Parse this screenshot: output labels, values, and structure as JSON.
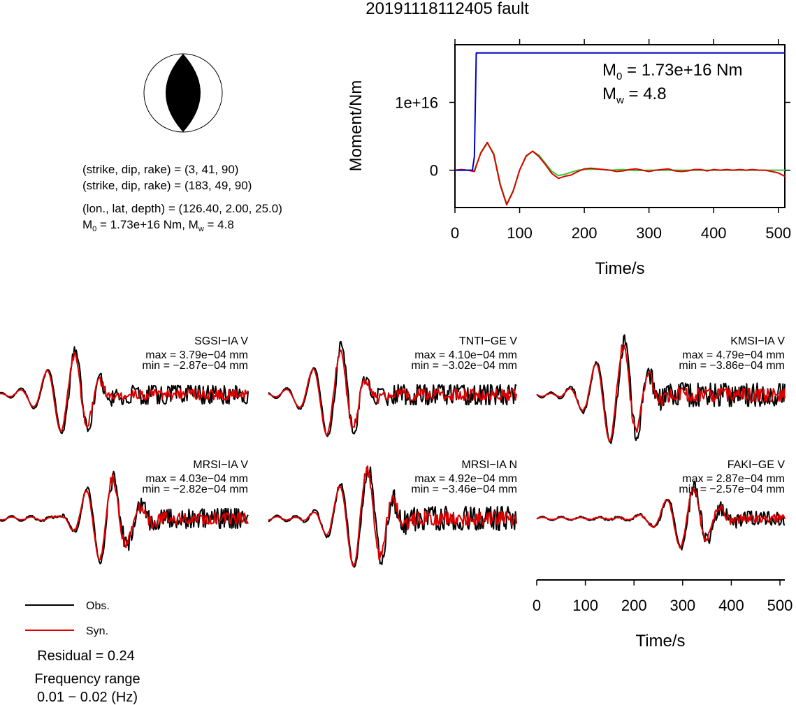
{
  "figure": {
    "title": "20191118112405 fault",
    "info_lines": [
      "(strike, dip, rake) = (3, 41, 90)",
      "(strike, dip, rake) = (183, 49, 90)",
      "(lon., lat, depth) = (126.40, 2.00, 25.0)"
    ],
    "info_m0_base": "M",
    "info_m0_sub": "0",
    "info_m0_rest": " = 1.73e+16 Nm, M",
    "info_mw_sub": "w",
    "info_mw_rest": " = 4.8",
    "legend": {
      "obs": "Obs.",
      "syn": "Syn."
    },
    "residual": "Residual = 0.24",
    "freq_label": "Frequency range",
    "freq_value": "0.01 − 0.02 (Hz)"
  },
  "chart_data": [
    {
      "id": "moment",
      "type": "line",
      "xlabel": "Time/s",
      "ylabel": "Moment/Nm",
      "xlim": [
        0,
        510
      ],
      "ylim": [
        -5500000000000000.0,
        1.85e+16
      ],
      "xticks": [
        "0",
        "100",
        "200",
        "300",
        "400",
        "500"
      ],
      "yticks": [
        "0",
        "1e+16"
      ],
      "annotation": {
        "m0_base": "M",
        "m0_sub": "0",
        "m0_rest": " = 1.73e+16 Nm",
        "mw_base": "M",
        "mw_sub": "w",
        "mw_rest": " = 4.8"
      },
      "colors": {
        "cumulative": "#0000cc",
        "obs": "#33cc33",
        "syn": "#dd0000"
      },
      "series": [
        {
          "x": [
            0,
            27,
            30,
            33,
            510
          ],
          "y": [
            0,
            0,
            2000000000000000.0,
            1.73e+16,
            1.73e+16
          ]
        },
        {
          "x": [
            0,
            30,
            40,
            50,
            60,
            70,
            80,
            90,
            100,
            110,
            120,
            130,
            140,
            150,
            160,
            170,
            180,
            190,
            200,
            220,
            240,
            260,
            280,
            300,
            320,
            340,
            360,
            380,
            400,
            420,
            440,
            460,
            480,
            500,
            510
          ],
          "y": [
            0,
            0,
            2500000000000000.0,
            4000000000000000.0,
            2500000000000000.0,
            -2000000000000000.0,
            -5000000000000000.0,
            -3000000000000000.0,
            0,
            2000000000000000.0,
            2800000000000000.0,
            2200000000000000.0,
            1000000000000000.0,
            -200000000000000.0,
            -800000000000000.0,
            -600000000000000.0,
            -300000000000000.0,
            0,
            100000000000000.0,
            150000000000000.0,
            0,
            100000000000000.0,
            -50000000000000.0,
            0,
            0,
            0,
            0,
            0,
            0,
            0,
            0,
            0,
            0,
            0,
            0
          ]
        },
        {
          "x": [
            0,
            10,
            20,
            30,
            40,
            50,
            60,
            70,
            80,
            90,
            100,
            110,
            120,
            130,
            140,
            150,
            160,
            170,
            180,
            190,
            200,
            210,
            220,
            230,
            240,
            250,
            260,
            270,
            280,
            290,
            300,
            310,
            320,
            330,
            340,
            350,
            360,
            370,
            380,
            390,
            400,
            410,
            420,
            430,
            440,
            450,
            460,
            470,
            480,
            490,
            500,
            510
          ],
          "y": [
            0,
            100000000000000.0,
            0,
            -200000000000000.0,
            2600000000000000.0,
            4100000000000000.0,
            2300000000000000.0,
            -2200000000000000.0,
            -5100000000000000.0,
            -3100000000000000.0,
            0,
            2100000000000000.0,
            2800000000000000.0,
            2000000000000000.0,
            800000000000000.0,
            -500000000000000.0,
            -1200000000000000.0,
            -900000000000000.0,
            -700000000000000.0,
            -200000000000000.0,
            200000000000000.0,
            300000000000000.0,
            200000000000000.0,
            100000000000000.0,
            0,
            -200000000000000.0,
            -100000000000000.0,
            100000000000000.0,
            200000000000000.0,
            0,
            -200000000000000.0,
            0,
            100000000000000.0,
            200000000000000.0,
            -100000000000000.0,
            -200000000000000.0,
            -100000000000000.0,
            100000000000000.0,
            100000000000000.0,
            -100000000000000.0,
            100000000000000.0,
            0,
            100000000000000.0,
            0,
            100000000000000.0,
            0,
            100000000000000.0,
            0,
            0,
            -200000000000000.0,
            -400000000000000.0,
            -900000000000000.0
          ]
        }
      ]
    },
    {
      "id": "waveforms",
      "type": "line",
      "xlabel": "Time/s",
      "xlim": [
        0,
        510
      ],
      "xticks": [
        "0",
        "100",
        "200",
        "300",
        "400",
        "500"
      ],
      "colors": {
        "obs": "#000000",
        "syn": "#dd0000"
      },
      "stations": [
        {
          "name": "SGSI−IA V",
          "max": "max = 3.79e−04 mm",
          "min": "min = −2.87e−04 mm",
          "seed": 1,
          "peak_time": 140,
          "max_val": 3.79,
          "min_val": -2.87,
          "amp_obs": 1.0,
          "amp_syn": 0.95
        },
        {
          "name": "TNTI−GE V",
          "max": "max = 4.10e−04 mm",
          "min": "min = −3.02e−04 mm",
          "seed": 2,
          "peak_time": 135,
          "max_val": 4.1,
          "min_val": -3.02,
          "amp_obs": 1.0,
          "amp_syn": 0.95
        },
        {
          "name": "KMSI−IA V",
          "max": "max = 4.79e−04 mm",
          "min": "min = −3.86e−04 mm",
          "seed": 3,
          "peak_time": 165,
          "max_val": 4.79,
          "min_val": -3.86,
          "amp_obs": 1.0,
          "amp_syn": 0.95
        },
        {
          "name": "MRSI−IA V",
          "max": "max = 4.03e−04 mm",
          "min": "min = −2.82e−04 mm",
          "seed": 4,
          "peak_time": 220,
          "max_val": 4.03,
          "min_val": -2.82,
          "amp_obs": 1.0,
          "amp_syn": 0.95
        },
        {
          "name": "MRSI−IA N",
          "max": "max = 4.92e−04 mm",
          "min": "min = −3.46e−04 mm",
          "seed": 5,
          "peak_time": 190,
          "max_val": 4.92,
          "min_val": -3.46,
          "amp_obs": 1.0,
          "amp_syn": 0.95
        },
        {
          "name": "FAKI−GE V",
          "max": "max = 2.87e−04 mm",
          "min": "min = −2.57e−04 mm",
          "seed": 6,
          "peak_time": 310,
          "max_val": 2.87,
          "min_val": -2.57,
          "amp_obs": 1.0,
          "amp_syn": 0.95
        }
      ]
    }
  ]
}
